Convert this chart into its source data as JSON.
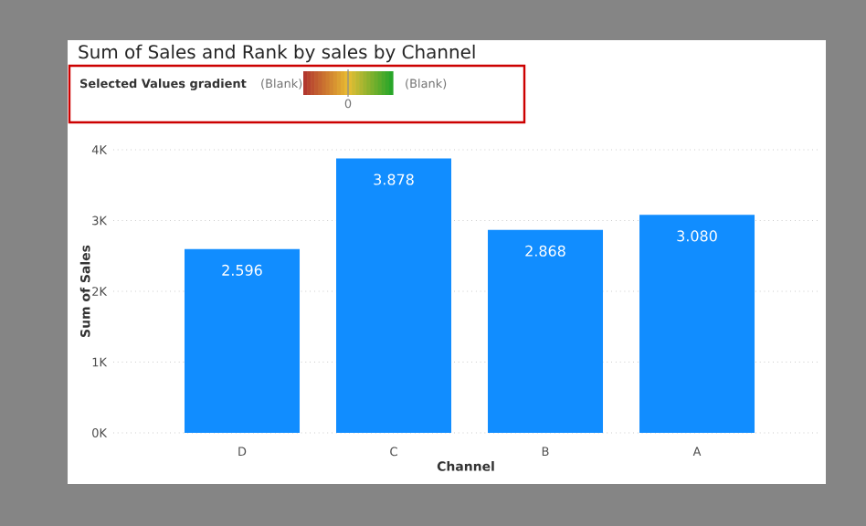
{
  "chart_data": {
    "type": "bar",
    "title": "Sum of Sales and Rank by sales by Channel",
    "legend_title": "Selected Values gradient",
    "annotations": [
      "(Blank)",
      "(Blank)",
      "0"
    ],
    "xlabel": "Channel",
    "ylabel": "Sum of Sales",
    "categories": [
      "D",
      "C",
      "B",
      "A"
    ],
    "values": [
      2596,
      3878,
      2868,
      3080
    ],
    "value_labels": [
      "2.596",
      "3.878",
      "2.868",
      "3.080"
    ],
    "color": "#118dff",
    "ylim": [
      0,
      4000
    ],
    "yticks": [
      {
        "value": 0,
        "label": "0K"
      },
      {
        "value": 1000,
        "label": "1K"
      },
      {
        "value": 2000,
        "label": "2K"
      },
      {
        "value": 3000,
        "label": "3K"
      },
      {
        "value": 4000,
        "label": "4K"
      }
    ],
    "grid": "y"
  }
}
